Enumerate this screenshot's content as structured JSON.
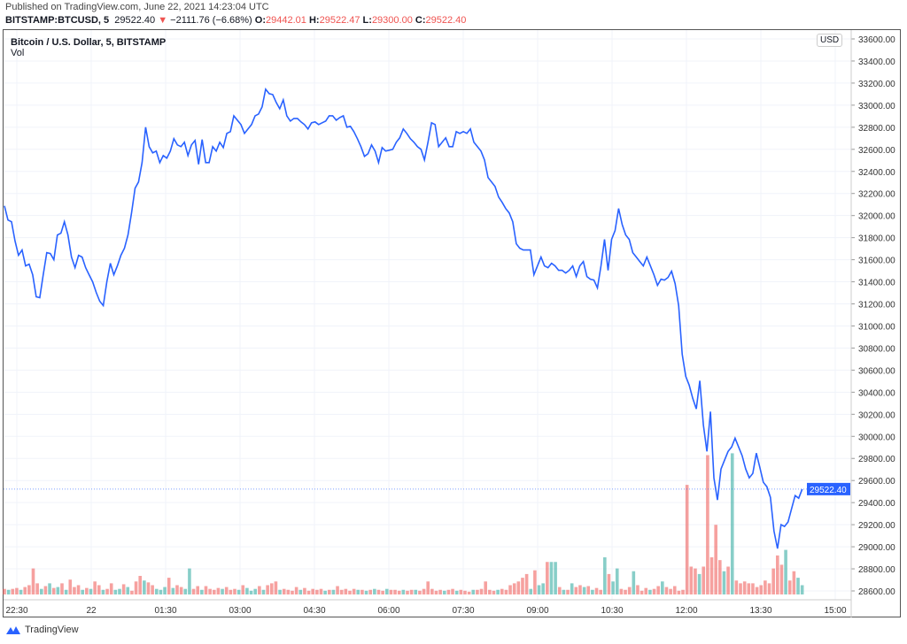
{
  "header": {
    "published": "Published on TradingView.com, June 22, 2021 14:23:04 UTC",
    "symbol": "BITSTAMP:BTCUSD, 5",
    "last": "29522.40",
    "change": "−2111.76 (−6.68%)",
    "o_label": "O:",
    "o": "29442.01",
    "h_label": "H:",
    "h": "29522.47",
    "l_label": "L:",
    "l": "29300.00",
    "c_label": "C:",
    "c": "29522.40"
  },
  "legend": {
    "title": "Bitcoin / U.S. Dollar, 5, BITSTAMP",
    "vol": "Vol"
  },
  "currency": "USD",
  "footer": {
    "brand": "TradingView"
  },
  "colors": {
    "line": "#2962ff",
    "up": "#26a69a",
    "down": "#ef5350",
    "grid": "#f0f3fa"
  },
  "chart_data": {
    "type": "line",
    "title": "Bitcoin / U.S. Dollar, 5, BITSTAMP",
    "xlabel": "",
    "ylabel": "USD",
    "ylim": [
      28500,
      33650
    ],
    "y_ticks": [
      "33600.00",
      "33400.00",
      "33200.00",
      "33000.00",
      "32800.00",
      "32600.00",
      "32400.00",
      "32200.00",
      "32000.00",
      "31800.00",
      "31600.00",
      "31400.00",
      "31200.00",
      "31000.00",
      "30800.00",
      "30600.00",
      "30400.00",
      "30200.00",
      "30000.00",
      "29800.00",
      "29600.00",
      "29400.00",
      "29200.00",
      "29000.00",
      "28800.00",
      "28600.00"
    ],
    "x_ticks": [
      "22:30",
      "22",
      "01:30",
      "03:00",
      "04:30",
      "06:00",
      "07:30",
      "09:00",
      "10:30",
      "12:00",
      "13:30",
      "15:00"
    ],
    "x_tick_minutes": [
      0,
      90,
      180,
      270,
      360,
      450,
      540,
      630,
      720,
      810,
      900,
      990
    ],
    "series_start_minutes": -15,
    "series_end_minutes": 950,
    "last_price_label": "29522.40",
    "price": [
      32088,
      31960,
      31944,
      31768,
      31640,
      31688,
      31544,
      31560,
      31464,
      31264,
      31256,
      31464,
      31664,
      31656,
      31600,
      31824,
      31840,
      31944,
      31824,
      31624,
      31528,
      31640,
      31624,
      31528,
      31464,
      31400,
      31304,
      31224,
      31184,
      31400,
      31568,
      31464,
      31544,
      31640,
      31704,
      31824,
      32024,
      32248,
      32304,
      32480,
      32800,
      32624,
      32568,
      32584,
      32480,
      32544,
      32520,
      32584,
      32696,
      32640,
      32624,
      32664,
      32544,
      32640,
      32680,
      32464,
      32688,
      32480,
      32480,
      32624,
      32584,
      32664,
      32616,
      32744,
      32760,
      32904,
      32864,
      32824,
      32744,
      32784,
      32824,
      32904,
      32920,
      32984,
      33144,
      33104,
      33096,
      33024,
      32968,
      33048,
      32904,
      32856,
      32880,
      32880,
      32848,
      32824,
      32784,
      32840,
      32848,
      32824,
      32840,
      32856,
      32904,
      32904,
      32864,
      32888,
      32904,
      32800,
      32808,
      32760,
      32696,
      32624,
      32536,
      32560,
      32640,
      32584,
      32480,
      32616,
      32584,
      32592,
      32600,
      32664,
      32704,
      32784,
      32744,
      32696,
      32664,
      32624,
      32600,
      32504,
      32664,
      32840,
      32824,
      32624,
      32664,
      32704,
      32624,
      32624,
      32760,
      32744,
      32760,
      32744,
      32784,
      32664,
      32624,
      32584,
      32504,
      32344,
      32304,
      32264,
      32168,
      32120,
      32064,
      32024,
      31944,
      31744,
      31704,
      31688,
      31688,
      31688,
      31464,
      31544,
      31624,
      31544,
      31528,
      31568,
      31544,
      31504,
      31504,
      31480,
      31504,
      31544,
      31448,
      31544,
      31584,
      31448,
      31424,
      31416,
      31344,
      31544,
      31784,
      31504,
      31784,
      31864,
      32064,
      31920,
      31824,
      31784,
      31664,
      31624,
      31584,
      31544,
      31624,
      31544,
      31464,
      31368,
      31424,
      31416,
      31440,
      31496,
      31384,
      31184,
      30744,
      30544,
      30464,
      30344,
      30248,
      30504,
      30104,
      29864,
      30224,
      29624,
      29424,
      29704,
      29784,
      29864,
      29904,
      29984,
      29904,
      29824,
      29704,
      29624,
      29664,
      29848,
      29720,
      29584,
      29544,
      29448,
      29144,
      28984,
      29200,
      29184,
      29224,
      29344,
      29464,
      29440,
      29522.4
    ],
    "volume_note": "relative volume; negative = down bar",
    "volume": [
      -6,
      5,
      -6,
      -7,
      5,
      -8,
      -10,
      -28,
      -12,
      6,
      -9,
      12,
      -7,
      8,
      -12,
      5,
      -16,
      -8,
      -10,
      5,
      -7,
      6,
      -14,
      -10,
      5,
      -6,
      -12,
      5,
      6,
      -11,
      8,
      -4,
      -14,
      -20,
      15,
      -13,
      -10,
      6,
      5,
      8,
      -18,
      7,
      -10,
      -8,
      6,
      28,
      -6,
      -9,
      5,
      -9,
      -6,
      -5,
      -7,
      6,
      -8,
      -5,
      -6,
      5,
      -10,
      7,
      4,
      6,
      -9,
      5,
      -10,
      -12,
      -14,
      5,
      -6,
      -5,
      -4,
      -8,
      5,
      -7,
      -4,
      -6,
      -5,
      -6,
      4,
      -5,
      5,
      -9,
      -5,
      -6,
      -4,
      -6,
      5,
      -5,
      4,
      -5,
      6,
      -5,
      -4,
      6,
      -5,
      -5,
      -4,
      5,
      -4,
      -5,
      5,
      -4,
      -6,
      -14,
      -6,
      -4,
      -5,
      4,
      -5,
      -6,
      4,
      -5,
      -4,
      -3,
      5,
      -5,
      -6,
      -14,
      -5,
      -4,
      5,
      -6,
      -5,
      -10,
      -12,
      -14,
      -18,
      -22,
      6,
      -26,
      10,
      12,
      -35,
      35,
      35,
      -8,
      5,
      -5,
      12,
      -8,
      -10,
      8,
      -9,
      5,
      -7,
      -5,
      40,
      -22,
      14,
      28,
      -6,
      -5,
      -8,
      25,
      -10,
      -4,
      -7,
      5,
      -6,
      -9,
      14,
      -8,
      -6,
      -9,
      -4,
      -5,
      -118,
      -30,
      -28,
      22,
      -30,
      -150,
      -40,
      -75,
      -37,
      25,
      -30,
      152,
      -15,
      -12,
      -14,
      -12,
      -12,
      -8,
      -10,
      -15,
      -12,
      -28,
      -42,
      -32,
      48,
      -15,
      -25,
      18,
      10
    ]
  }
}
